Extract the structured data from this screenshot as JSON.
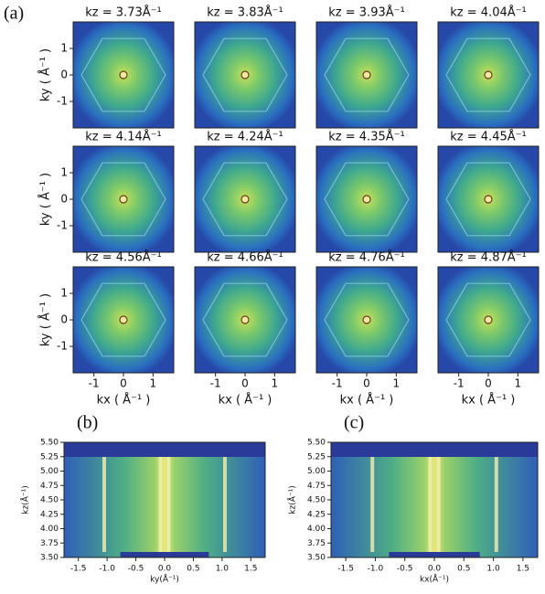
{
  "panel_labels": [
    "(a)",
    "(b)",
    "(c)"
  ],
  "chart_data": [
    {
      "type": "heatmap",
      "title": "kz = 3.73Å⁻¹",
      "ylabel": "ky ( Å⁻¹ )",
      "xlim": [
        -1.7,
        1.7
      ],
      "ylim": [
        -2,
        2
      ],
      "yticks": [
        -1,
        0,
        1
      ]
    },
    {
      "type": "heatmap",
      "title": "kz = 3.83Å⁻¹",
      "xlim": [
        -1.7,
        1.7
      ],
      "ylim": [
        -2,
        2
      ]
    },
    {
      "type": "heatmap",
      "title": "kz = 3.93Å⁻¹",
      "xlim": [
        -1.7,
        1.7
      ],
      "ylim": [
        -2,
        2
      ]
    },
    {
      "type": "heatmap",
      "title": "kz = 4.04Å⁻¹",
      "xlim": [
        -1.7,
        1.7
      ],
      "ylim": [
        -2,
        2
      ]
    },
    {
      "type": "heatmap",
      "title": "kz = 4.14Å⁻¹",
      "ylabel": "ky ( Å⁻¹ )",
      "xlim": [
        -1.7,
        1.7
      ],
      "ylim": [
        -2,
        2
      ],
      "yticks": [
        -1,
        0,
        1
      ]
    },
    {
      "type": "heatmap",
      "title": "kz = 4.24Å⁻¹",
      "xlim": [
        -1.7,
        1.7
      ],
      "ylim": [
        -2,
        2
      ]
    },
    {
      "type": "heatmap",
      "title": "kz = 4.35Å⁻¹",
      "xlim": [
        -1.7,
        1.7
      ],
      "ylim": [
        -2,
        2
      ]
    },
    {
      "type": "heatmap",
      "title": "kz = 4.45Å⁻¹",
      "xlim": [
        -1.7,
        1.7
      ],
      "ylim": [
        -2,
        2
      ]
    },
    {
      "type": "heatmap",
      "title": "kz = 4.56Å⁻¹",
      "ylabel": "ky ( Å⁻¹ )",
      "xlabel": "kx ( Å⁻¹ )",
      "xlim": [
        -1.7,
        1.7
      ],
      "ylim": [
        -2,
        2
      ],
      "xticks": [
        -1,
        0,
        1
      ],
      "yticks": [
        -1,
        0,
        1
      ]
    },
    {
      "type": "heatmap",
      "title": "kz = 4.66Å⁻¹",
      "xlabel": "kx ( Å⁻¹ )",
      "xlim": [
        -1.7,
        1.7
      ],
      "ylim": [
        -2,
        2
      ],
      "xticks": [
        -1,
        0,
        1
      ]
    },
    {
      "type": "heatmap",
      "title": "kz = 4.76Å⁻¹",
      "xlabel": "kx ( Å⁻¹ )",
      "xlim": [
        -1.7,
        1.7
      ],
      "ylim": [
        -2,
        2
      ],
      "xticks": [
        -1,
        0,
        1
      ]
    },
    {
      "type": "heatmap",
      "title": "kz = 4.87Å⁻¹",
      "xlabel": "kx ( Å⁻¹ )",
      "xlim": [
        -1.7,
        1.7
      ],
      "ylim": [
        -2,
        2
      ],
      "xticks": [
        -1,
        0,
        1
      ]
    },
    {
      "type": "kzmap",
      "xlabel": "ky(Å⁻¹)",
      "ylabel": "kz(Å⁻¹)",
      "xlim": [
        -1.75,
        1.75
      ],
      "ylim": [
        3.5,
        5.5
      ],
      "xticks": [
        {
          "value": -1.5,
          "label": "-1.5"
        },
        {
          "value": -1,
          "label": "-1.0"
        },
        {
          "value": -0.5,
          "label": "-0.5"
        },
        {
          "value": 0,
          "label": "0.0"
        },
        {
          "value": 0.5,
          "label": "0.5"
        },
        {
          "value": 1,
          "label": "1.0"
        },
        {
          "value": 1.5,
          "label": "1.5"
        }
      ],
      "yticks": [
        {
          "value": 3.5,
          "label": "3.50"
        },
        {
          "value": 3.75,
          "label": "3.75"
        },
        {
          "value": 4,
          "label": "4.00"
        },
        {
          "value": 4.25,
          "label": "4.25"
        },
        {
          "value": 4.5,
          "label": "4.50"
        },
        {
          "value": 4.75,
          "label": "4.75"
        },
        {
          "value": 5,
          "label": "5.00"
        },
        {
          "value": 5.25,
          "label": "5.25"
        },
        {
          "value": 5.5,
          "label": "5.50"
        }
      ]
    },
    {
      "type": "kzmap",
      "xlabel": "kx(Å⁻¹)",
      "ylabel": "kz(Å⁻¹)",
      "xlim": [
        -1.75,
        1.75
      ],
      "ylim": [
        3.5,
        5.5
      ],
      "xticks": [
        {
          "value": -1.5,
          "label": "-1.5"
        },
        {
          "value": -1,
          "label": "-1.0"
        },
        {
          "value": -0.5,
          "label": "-0.5"
        },
        {
          "value": 0,
          "label": "0.0"
        },
        {
          "value": 0.5,
          "label": "0.5"
        },
        {
          "value": 1,
          "label": "1.0"
        },
        {
          "value": 1.5,
          "label": "1.5"
        }
      ],
      "yticks": [
        {
          "value": 3.5,
          "label": "3.50"
        },
        {
          "value": 3.75,
          "label": "3.75"
        },
        {
          "value": 4,
          "label": "4.00"
        },
        {
          "value": 4.25,
          "label": "4.25"
        },
        {
          "value": 4.5,
          "label": "4.50"
        },
        {
          "value": 4.75,
          "label": "4.75"
        },
        {
          "value": 5,
          "label": "5.00"
        },
        {
          "value": 5.25,
          "label": "5.25"
        },
        {
          "value": 5.5,
          "label": "5.50"
        }
      ]
    }
  ]
}
